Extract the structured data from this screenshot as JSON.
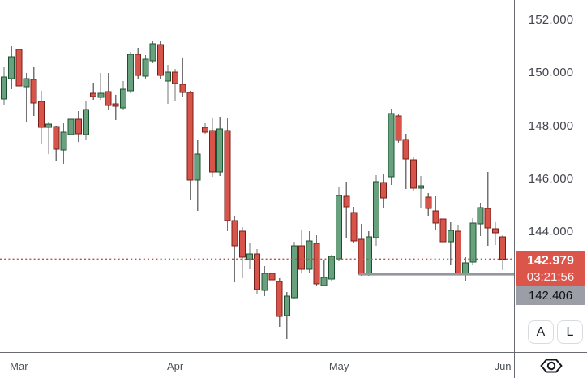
{
  "chart_data": {
    "type": "candlestick",
    "title": "",
    "grid": false,
    "y_axis": {
      "position": "right",
      "ticks": [
        152,
        150,
        148,
        146,
        144
      ],
      "tick_labels": [
        "152.000",
        "150.000",
        "148.000",
        "146.000",
        "144.000"
      ],
      "range": [
        139.2,
        152.9
      ]
    },
    "x_axis": {
      "labels": [
        {
          "label": "Mar",
          "candle_index": 2
        },
        {
          "label": "Apr",
          "candle_index": 23
        },
        {
          "label": "May",
          "candle_index": 45
        },
        {
          "label": "Jun",
          "candle_index": 67
        }
      ]
    },
    "last_price": {
      "label": "142.979",
      "value": 142.979,
      "countdown": "03:21:56"
    },
    "level_line": {
      "label": "142.406",
      "value": 142.406,
      "starts_at_candle": 48
    },
    "candles_format": [
      "open",
      "high",
      "low",
      "close"
    ],
    "candles": [
      [
        149.03,
        150.23,
        148.79,
        149.86
      ],
      [
        149.8,
        151.02,
        149.4,
        150.63
      ],
      [
        150.9,
        151.33,
        149.15,
        149.52
      ],
      [
        149.49,
        150.01,
        148.17,
        149.8
      ],
      [
        149.77,
        150.23,
        148.39,
        148.88
      ],
      [
        148.94,
        149.34,
        147.34,
        147.96
      ],
      [
        147.96,
        148.17,
        146.94,
        148.08
      ],
      [
        147.99,
        148.02,
        146.67,
        147.13
      ],
      [
        147.1,
        148.11,
        146.58,
        147.77
      ],
      [
        147.68,
        149.21,
        147.47,
        148.26
      ],
      [
        148.26,
        148.57,
        147.4,
        147.71
      ],
      [
        147.68,
        148.94,
        147.5,
        148.63
      ],
      [
        149.25,
        149.64,
        149.0,
        149.12
      ],
      [
        149.09,
        150.01,
        149.0,
        149.25
      ],
      [
        149.31,
        150.01,
        148.63,
        148.79
      ],
      [
        148.85,
        149.18,
        148.23,
        148.75
      ],
      [
        148.69,
        149.71,
        148.63,
        149.4
      ],
      [
        149.34,
        150.81,
        149.25,
        150.72
      ],
      [
        150.72,
        150.96,
        149.77,
        149.92
      ],
      [
        149.89,
        150.69,
        149.77,
        150.53
      ],
      [
        150.47,
        151.24,
        150.38,
        151.12
      ],
      [
        151.09,
        151.21,
        149.77,
        149.92
      ],
      [
        149.71,
        150.32,
        148.85,
        150.04
      ],
      [
        150.04,
        150.17,
        148.94,
        149.61
      ],
      [
        149.58,
        150.56,
        149.09,
        149.28
      ],
      [
        149.28,
        149.34,
        145.2,
        145.96
      ],
      [
        145.96,
        147.5,
        144.8,
        146.94
      ],
      [
        147.96,
        148.11,
        147.71,
        147.77
      ],
      [
        147.83,
        148.33,
        146.09,
        146.27
      ],
      [
        146.27,
        148.36,
        146.12,
        147.9
      ],
      [
        147.83,
        148.29,
        144.03,
        144.43
      ],
      [
        144.43,
        144.61,
        142.1,
        143.48
      ],
      [
        144.03,
        144.18,
        142.25,
        143.05
      ],
      [
        142.96,
        143.57,
        142.59,
        143.17
      ],
      [
        143.17,
        143.36,
        141.64,
        141.82
      ],
      [
        141.79,
        142.71,
        141.58,
        142.44
      ],
      [
        142.44,
        142.56,
        142.13,
        142.19
      ],
      [
        142.13,
        142.25,
        140.41,
        140.81
      ],
      [
        140.84,
        141.73,
        139.95,
        141.58
      ],
      [
        141.52,
        143.63,
        141.48,
        143.48
      ],
      [
        143.48,
        144.06,
        142.44,
        142.59
      ],
      [
        142.59,
        144.03,
        142.44,
        143.66
      ],
      [
        143.57,
        143.88,
        141.94,
        142.04
      ],
      [
        141.98,
        142.96,
        141.94,
        142.28
      ],
      [
        142.22,
        143.14,
        142.13,
        143.08
      ],
      [
        142.99,
        145.72,
        142.9,
        145.38
      ],
      [
        145.35,
        145.9,
        143.79,
        144.95
      ],
      [
        144.74,
        144.95,
        143.57,
        143.66
      ],
      [
        143.72,
        144.31,
        142.34,
        142.4
      ],
      [
        142.44,
        144.03,
        142.34,
        143.82
      ],
      [
        143.79,
        146.15,
        143.48,
        145.9
      ],
      [
        145.87,
        146.18,
        144.89,
        145.29
      ],
      [
        146.09,
        148.66,
        145.78,
        148.48
      ],
      [
        148.39,
        148.45,
        147.37,
        147.47
      ],
      [
        147.5,
        147.71,
        145.63,
        146.76
      ],
      [
        146.73,
        146.82,
        145.56,
        145.66
      ],
      [
        145.66,
        146.12,
        144.92,
        145.75
      ],
      [
        145.32,
        145.47,
        144.61,
        144.89
      ],
      [
        144.8,
        145.35,
        144.09,
        144.34
      ],
      [
        144.49,
        144.67,
        143.26,
        143.63
      ],
      [
        143.63,
        144.37,
        142.74,
        144.06
      ],
      [
        144.03,
        144.28,
        142.4,
        142.44
      ],
      [
        142.4,
        143.05,
        142.13,
        142.83
      ],
      [
        142.87,
        144.52,
        142.74,
        144.34
      ],
      [
        144.31,
        145.1,
        143.85,
        144.92
      ],
      [
        144.89,
        146.27,
        143.48,
        144.15
      ],
      [
        144.12,
        144.37,
        143.51,
        143.97
      ],
      [
        143.82,
        143.88,
        142.56,
        142.98
      ]
    ]
  },
  "price_scale": {
    "auto_button_label": "A",
    "log_button_label": "L"
  },
  "icons": {
    "corner_logo": "hexagon-eye-logo"
  },
  "colors": {
    "background": "#ffffff",
    "up_body": "#69a07d",
    "up_border": "#1a522f",
    "down_body": "#d6544a",
    "down_border": "#781e19",
    "wick": "#737376",
    "last_price_line": "#b9544c",
    "last_price_badge": "#dc554a",
    "level_line": "#94979e",
    "level_badge": "#9b9ea7",
    "axis_line": "#686b73",
    "axis_text": "#43464d"
  }
}
